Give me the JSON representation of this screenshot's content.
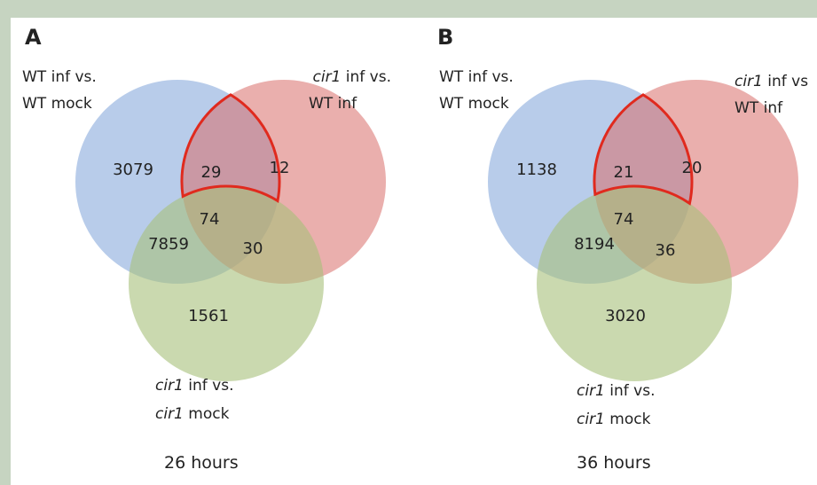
{
  "panels": [
    {
      "label": "A",
      "set_labels": {
        "blue": [
          "WT inf vs.",
          "WT mock"
        ],
        "red": [
          {
            "italic": "cir1",
            "rest": " inf vs."
          },
          "WT inf"
        ],
        "green": [
          {
            "italic": "cir1",
            "rest": " inf vs."
          },
          {
            "italic": "cir1",
            "rest": " mock"
          }
        ]
      },
      "regions": {
        "blue_only": "3079",
        "blue_red": "29",
        "red_only": "12",
        "all": "74",
        "blue_green": "7859",
        "red_green": "30",
        "green_only": "1561"
      },
      "caption": "26 hours"
    },
    {
      "label": "B",
      "set_labels": {
        "blue": [
          "WT inf vs.",
          "WT mock"
        ],
        "red": [
          {
            "italic": "cir1",
            "rest": " inf vs"
          },
          "WT inf"
        ],
        "green": [
          {
            "italic": "cir1",
            "rest": " inf vs."
          },
          {
            "italic": "cir1",
            "rest": " mock"
          }
        ]
      },
      "regions": {
        "blue_only": "1138",
        "blue_red": "21",
        "red_only": "20",
        "all": "74",
        "blue_green": "8194",
        "red_green": "36",
        "green_only": "3020"
      },
      "caption": "36 hours"
    }
  ]
}
